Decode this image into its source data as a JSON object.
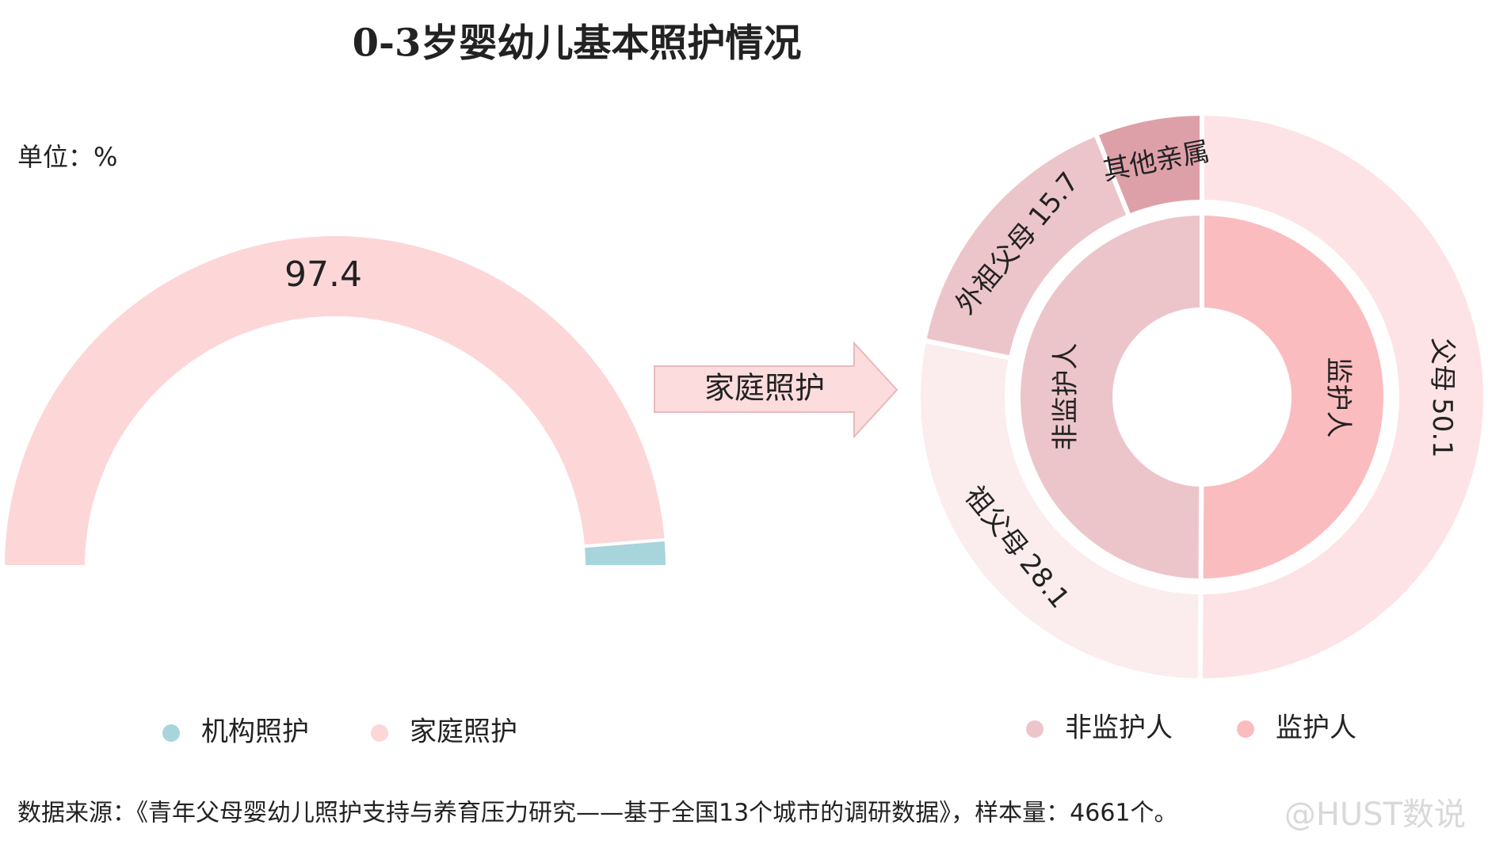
{
  "title": "0-3岁婴幼儿基本照护情况",
  "unit": "单位：%",
  "arrow_label": "家庭照护",
  "source": "数据来源：《青年父母婴幼儿照护支持与养育压力研究——基于全国13个城市的调研数据》，样本量：4661个。",
  "watermark": "@HUST数说",
  "chart_data": [
    {
      "type": "halfpie",
      "categories": [
        "机构照护",
        "家庭照护"
      ],
      "values": [
        2.6,
        97.4
      ],
      "value_labels": [
        null,
        "97.4"
      ],
      "colors": [
        "#a8d5dc",
        "#fdd6d8"
      ]
    },
    {
      "type": "sunburst",
      "inner": {
        "categories": [
          "监护人",
          "非监护人"
        ],
        "values": [
          50.1,
          49.9
        ],
        "colors": [
          "#fbbcbf",
          "#ecc5ca"
        ]
      },
      "outer": {
        "categories": [
          "父母",
          "祖父母",
          "外祖父母",
          "其他亲属"
        ],
        "values": [
          50.1,
          28.1,
          15.7,
          6.1
        ],
        "value_labels": [
          "50.1",
          "28.1",
          "15.7",
          null
        ],
        "colors": [
          "#fde3e5",
          "#fbecee",
          "#ecc5cb",
          "#dea0a8"
        ]
      }
    }
  ]
}
